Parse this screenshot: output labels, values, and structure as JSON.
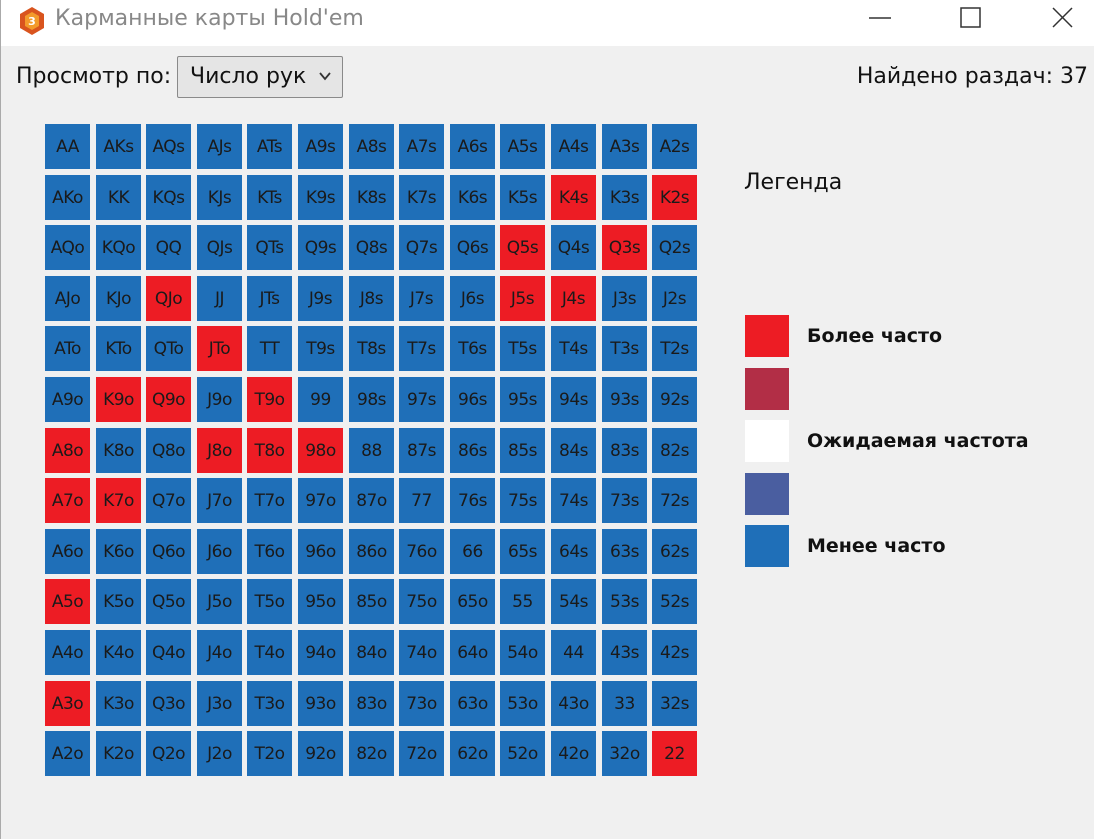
{
  "window": {
    "title": "Карманные карты Hold'em",
    "app_icon": "app-logo-icon",
    "controls": [
      "minimize-icon",
      "maximize-icon",
      "close-icon"
    ]
  },
  "toolbar": {
    "view_label": "Просмотр по:",
    "view_select": {
      "value": "Число рук"
    },
    "found_label": "Найдено раздач: 37"
  },
  "colors": {
    "more": "#ed1c24",
    "more_mid": "#b22e46",
    "expected": "#ffffff",
    "less_mid": "#4a5ea0",
    "less": "#1f6fb8"
  },
  "grid": {
    "rows": [
      {
        "cards": [
          "AA",
          "AKs",
          "AQs",
          "AJs",
          "ATs",
          "A9s",
          "A8s",
          "A7s",
          "A6s",
          "A5s",
          "A4s",
          "A3s",
          "A2s"
        ],
        "states": [
          "less",
          "less",
          "less",
          "less",
          "less",
          "less",
          "less",
          "less",
          "less",
          "less",
          "less",
          "less",
          "less"
        ]
      },
      {
        "cards": [
          "AKo",
          "KK",
          "KQs",
          "KJs",
          "KTs",
          "K9s",
          "K8s",
          "K7s",
          "K6s",
          "K5s",
          "K4s",
          "K3s",
          "K2s"
        ],
        "states": [
          "less",
          "less",
          "less",
          "less",
          "less",
          "less",
          "less",
          "less",
          "less",
          "less",
          "more",
          "less",
          "more"
        ]
      },
      {
        "cards": [
          "AQo",
          "KQo",
          "QQ",
          "QJs",
          "QTs",
          "Q9s",
          "Q8s",
          "Q7s",
          "Q6s",
          "Q5s",
          "Q4s",
          "Q3s",
          "Q2s"
        ],
        "states": [
          "less",
          "less",
          "less",
          "less",
          "less",
          "less",
          "less",
          "less",
          "less",
          "more",
          "less",
          "more",
          "less"
        ]
      },
      {
        "cards": [
          "AJo",
          "KJo",
          "QJo",
          "JJ",
          "JTs",
          "J9s",
          "J8s",
          "J7s",
          "J6s",
          "J5s",
          "J4s",
          "J3s",
          "J2s"
        ],
        "states": [
          "less",
          "less",
          "more",
          "less",
          "less",
          "less",
          "less",
          "less",
          "less",
          "more",
          "more",
          "less",
          "less"
        ]
      },
      {
        "cards": [
          "ATo",
          "KTo",
          "QTo",
          "JTo",
          "TT",
          "T9s",
          "T8s",
          "T7s",
          "T6s",
          "T5s",
          "T4s",
          "T3s",
          "T2s"
        ],
        "states": [
          "less",
          "less",
          "less",
          "more",
          "less",
          "less",
          "less",
          "less",
          "less",
          "less",
          "less",
          "less",
          "less"
        ]
      },
      {
        "cards": [
          "A9o",
          "K9o",
          "Q9o",
          "J9o",
          "T9o",
          "99",
          "98s",
          "97s",
          "96s",
          "95s",
          "94s",
          "93s",
          "92s"
        ],
        "states": [
          "less",
          "more",
          "more",
          "less",
          "more",
          "less",
          "less",
          "less",
          "less",
          "less",
          "less",
          "less",
          "less"
        ]
      },
      {
        "cards": [
          "A8o",
          "K8o",
          "Q8o",
          "J8o",
          "T8o",
          "98o",
          "88",
          "87s",
          "86s",
          "85s",
          "84s",
          "83s",
          "82s"
        ],
        "states": [
          "more",
          "less",
          "less",
          "more",
          "more",
          "more",
          "less",
          "less",
          "less",
          "less",
          "less",
          "less",
          "less"
        ]
      },
      {
        "cards": [
          "A7o",
          "K7o",
          "Q7o",
          "J7o",
          "T7o",
          "97o",
          "87o",
          "77",
          "76s",
          "75s",
          "74s",
          "73s",
          "72s"
        ],
        "states": [
          "more",
          "more",
          "less",
          "less",
          "less",
          "less",
          "less",
          "less",
          "less",
          "less",
          "less",
          "less",
          "less"
        ]
      },
      {
        "cards": [
          "A6o",
          "K6o",
          "Q6o",
          "J6o",
          "T6o",
          "96o",
          "86o",
          "76o",
          "66",
          "65s",
          "64s",
          "63s",
          "62s"
        ],
        "states": [
          "less",
          "less",
          "less",
          "less",
          "less",
          "less",
          "less",
          "less",
          "less",
          "less",
          "less",
          "less",
          "less"
        ]
      },
      {
        "cards": [
          "A5o",
          "K5o",
          "Q5o",
          "J5o",
          "T5o",
          "95o",
          "85o",
          "75o",
          "65o",
          "55",
          "54s",
          "53s",
          "52s"
        ],
        "states": [
          "more",
          "less",
          "less",
          "less",
          "less",
          "less",
          "less",
          "less",
          "less",
          "less",
          "less",
          "less",
          "less"
        ]
      },
      {
        "cards": [
          "A4o",
          "K4o",
          "Q4o",
          "J4o",
          "T4o",
          "94o",
          "84o",
          "74o",
          "64o",
          "54o",
          "44",
          "43s",
          "42s"
        ],
        "states": [
          "less",
          "less",
          "less",
          "less",
          "less",
          "less",
          "less",
          "less",
          "less",
          "less",
          "less",
          "less",
          "less"
        ]
      },
      {
        "cards": [
          "A3o",
          "K3o",
          "Q3o",
          "J3o",
          "T3o",
          "93o",
          "83o",
          "73o",
          "63o",
          "53o",
          "43o",
          "33",
          "32s"
        ],
        "states": [
          "more",
          "less",
          "less",
          "less",
          "less",
          "less",
          "less",
          "less",
          "less",
          "less",
          "less",
          "less",
          "less"
        ]
      },
      {
        "cards": [
          "A2o",
          "K2o",
          "Q2o",
          "J2o",
          "T2o",
          "92o",
          "82o",
          "72o",
          "62o",
          "52o",
          "42o",
          "32o",
          "22"
        ],
        "states": [
          "less",
          "less",
          "less",
          "less",
          "less",
          "less",
          "less",
          "less",
          "less",
          "less",
          "less",
          "less",
          "more"
        ]
      }
    ]
  },
  "legend": {
    "title": "Легенда",
    "items": [
      {
        "key": "more",
        "label": "Более часто"
      },
      {
        "key": "more_mid",
        "label": ""
      },
      {
        "key": "expected",
        "label": "Ожидаемая частота"
      },
      {
        "key": "less_mid",
        "label": ""
      },
      {
        "key": "less",
        "label": "Менее часто"
      }
    ]
  }
}
